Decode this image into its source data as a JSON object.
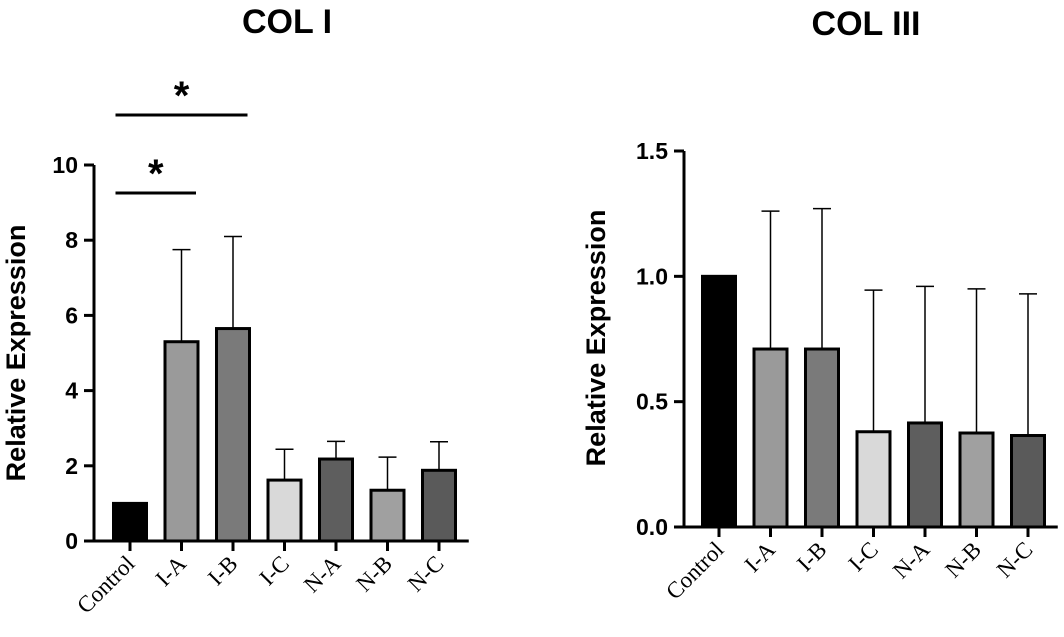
{
  "chart_data": [
    {
      "type": "bar",
      "title": "COL I",
      "ylabel": "Relative Expression",
      "xlabel": "",
      "ylim": [
        0,
        10
      ],
      "yticks": [
        0,
        2,
        4,
        6,
        8,
        10
      ],
      "ytick_labels": [
        "0",
        "2",
        "4",
        "6",
        "8",
        "10"
      ],
      "categories": [
        "Control",
        "I-A",
        "I-B",
        "I-C",
        "N-A",
        "N-B",
        "N-C"
      ],
      "values": [
        1.0,
        5.3,
        5.65,
        1.62,
        2.18,
        1.35,
        1.88
      ],
      "errors": [
        0,
        2.45,
        2.45,
        0.82,
        0.47,
        0.88,
        0.76
      ],
      "bar_colors": [
        "#000000",
        "#9a9a9a",
        "#7a7a7a",
        "#d9d9d9",
        "#5e5e5e",
        "#a0a0a0",
        "#5a5a5a"
      ],
      "significance": [
        {
          "from": "Control",
          "to": "I-A",
          "label": "*",
          "level": 1
        },
        {
          "from": "Control",
          "to": "I-B",
          "label": "*",
          "level": 2
        }
      ],
      "grid": false,
      "legend": "none"
    },
    {
      "type": "bar",
      "title": "COL III",
      "ylabel": "Relative Expression",
      "xlabel": "",
      "ylim": [
        0,
        1.5
      ],
      "yticks": [
        0,
        0.5,
        1.0,
        1.5
      ],
      "ytick_labels": [
        "0.0",
        "0.5",
        "1.0",
        "1.5"
      ],
      "categories": [
        "Control",
        "I-A",
        "I-B",
        "I-C",
        "N-A",
        "N-B",
        "N-C"
      ],
      "values": [
        1.0,
        0.71,
        0.71,
        0.38,
        0.415,
        0.375,
        0.365
      ],
      "errors": [
        0,
        0.55,
        0.56,
        0.565,
        0.545,
        0.575,
        0.565
      ],
      "bar_colors": [
        "#000000",
        "#9a9a9a",
        "#7a7a7a",
        "#d9d9d9",
        "#5e5e5e",
        "#a0a0a0",
        "#5a5a5a"
      ],
      "significance": [],
      "grid": false,
      "legend": "none"
    }
  ]
}
